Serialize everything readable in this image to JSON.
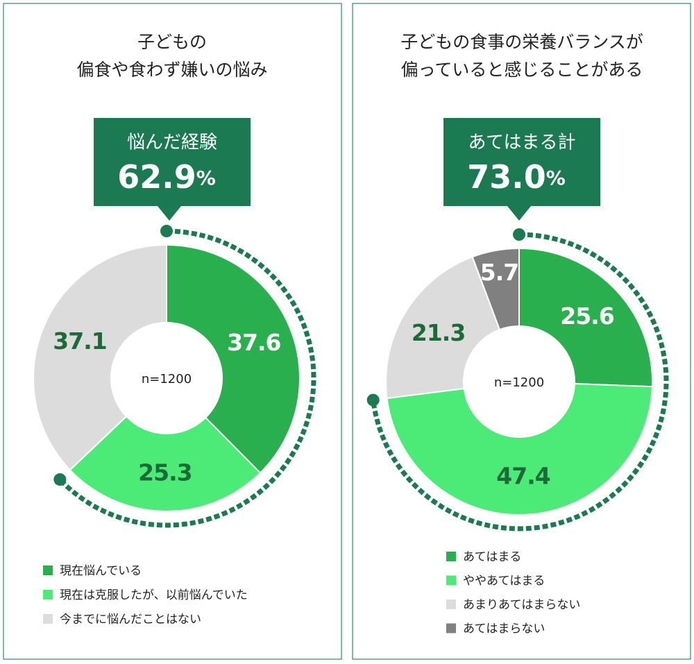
{
  "chart_data": [
    {
      "type": "donut",
      "title": [
        "子どもの",
        "偏食や食わず嫌いの悩み"
      ],
      "total": {
        "label": "悩んだ経験",
        "value": 62.9,
        "unit": "%"
      },
      "note": "n=1200",
      "categories": [
        "現在悩んでいる",
        "現在は克服したが、以前悩んでいた",
        "今までに悩んだことはない"
      ],
      "values": [
        37.6,
        25.3,
        37.1
      ],
      "colors": [
        "#2aaf4e",
        "#4ceb78",
        "#dcdcdc"
      ],
      "label_colors": [
        "#ffffff",
        "#1c6a37",
        "#1c6a37"
      ]
    },
    {
      "type": "donut",
      "title": [
        "子どもの食事の栄養バランスが",
        "偏っていると感じることがある"
      ],
      "total": {
        "label": "あてはまる計",
        "value": 73.0,
        "unit": "%"
      },
      "note": "n=1200",
      "categories": [
        "あてはまる",
        "ややあてはまる",
        "あまりあてはまらない",
        "あてはまらない"
      ],
      "values": [
        25.6,
        47.4,
        21.3,
        5.7
      ],
      "colors": [
        "#2aaf4e",
        "#4ceb78",
        "#dcdcdc",
        "#808080"
      ],
      "label_colors": [
        "#ffffff",
        "#1c6a37",
        "#1c6a37",
        "#ffffff"
      ]
    }
  ]
}
